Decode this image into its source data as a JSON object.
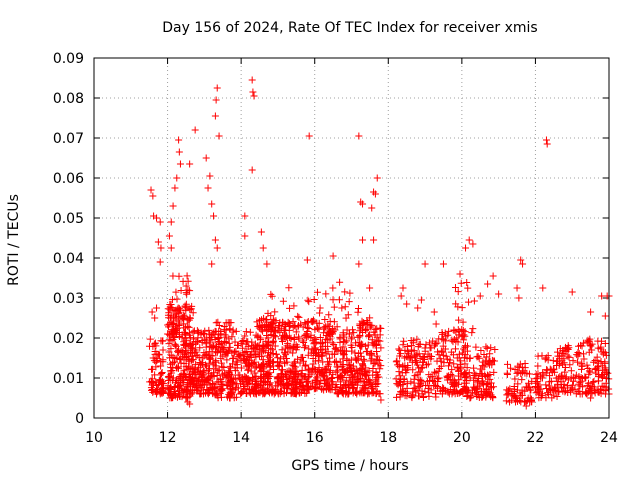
{
  "chart_data": {
    "type": "scatter",
    "title": "Day 156 of 2024, Rate Of TEC Index for receiver xmis",
    "xlabel": "GPS time / hours",
    "ylabel": "ROTI / TECUs",
    "xlim": [
      10,
      24
    ],
    "ylim": [
      0,
      0.09
    ],
    "xticks": [
      "10",
      "12",
      "14",
      "16",
      "18",
      "20",
      "22",
      "24"
    ],
    "yticks": [
      "0",
      "0.01",
      "0.02",
      "0.03",
      "0.04",
      "0.05",
      "0.06",
      "0.07",
      "0.08",
      "0.09"
    ],
    "grid": true,
    "marker": "+",
    "color": "#ff0000",
    "series": [
      {
        "name": "ROTI",
        "points": [
          [
            11.55,
            0.057
          ],
          [
            11.6,
            0.0555
          ],
          [
            11.62,
            0.0505
          ],
          [
            11.7,
            0.05
          ],
          [
            11.8,
            0.049
          ],
          [
            11.75,
            0.044
          ],
          [
            11.82,
            0.0425
          ],
          [
            11.8,
            0.039
          ],
          [
            11.58,
            0.0265
          ],
          [
            11.65,
            0.025
          ],
          [
            11.7,
            0.0275
          ],
          [
            12.3,
            0.0695
          ],
          [
            12.32,
            0.0665
          ],
          [
            12.35,
            0.0635
          ],
          [
            12.25,
            0.06
          ],
          [
            12.2,
            0.0575
          ],
          [
            12.15,
            0.053
          ],
          [
            12.1,
            0.049
          ],
          [
            12.05,
            0.0455
          ],
          [
            12.1,
            0.0425
          ],
          [
            12.6,
            0.0635
          ],
          [
            12.75,
            0.072
          ],
          [
            13.05,
            0.065
          ],
          [
            13.15,
            0.0605
          ],
          [
            13.1,
            0.0575
          ],
          [
            13.2,
            0.0535
          ],
          [
            13.25,
            0.0505
          ],
          [
            13.3,
            0.0445
          ],
          [
            13.35,
            0.0425
          ],
          [
            13.2,
            0.0385
          ],
          [
            13.35,
            0.0825
          ],
          [
            13.32,
            0.0795
          ],
          [
            13.3,
            0.0755
          ],
          [
            13.4,
            0.0705
          ],
          [
            14.3,
            0.0845
          ],
          [
            14.32,
            0.0815
          ],
          [
            14.35,
            0.0805
          ],
          [
            14.3,
            0.062
          ],
          [
            14.1,
            0.0505
          ],
          [
            14.1,
            0.0455
          ],
          [
            14.55,
            0.0465
          ],
          [
            14.6,
            0.0425
          ],
          [
            14.7,
            0.0385
          ],
          [
            15.85,
            0.0705
          ],
          [
            15.8,
            0.0395
          ],
          [
            16.5,
            0.0405
          ],
          [
            17.2,
            0.0705
          ],
          [
            17.25,
            0.054
          ],
          [
            17.3,
            0.0535
          ],
          [
            17.6,
            0.0565
          ],
          [
            17.65,
            0.056
          ],
          [
            17.7,
            0.06
          ],
          [
            17.55,
            0.0525
          ],
          [
            17.6,
            0.0445
          ],
          [
            17.3,
            0.0445
          ],
          [
            17.2,
            0.0385
          ],
          [
            19.0,
            0.0385
          ],
          [
            19.5,
            0.0385
          ],
          [
            20.1,
            0.0425
          ],
          [
            20.2,
            0.0445
          ],
          [
            20.3,
            0.0435
          ],
          [
            19.95,
            0.036
          ],
          [
            20.5,
            0.0305
          ],
          [
            20.7,
            0.0335
          ],
          [
            20.85,
            0.0355
          ],
          [
            21.0,
            0.031
          ],
          [
            21.6,
            0.0395
          ],
          [
            21.65,
            0.0385
          ],
          [
            21.5,
            0.0325
          ],
          [
            21.55,
            0.03
          ],
          [
            22.2,
            0.0325
          ],
          [
            22.3,
            0.0695
          ],
          [
            22.32,
            0.0685
          ],
          [
            23.0,
            0.0315
          ],
          [
            23.5,
            0.0265
          ],
          [
            23.8,
            0.0305
          ],
          [
            23.95,
            0.0305
          ],
          [
            23.9,
            0.0255
          ],
          [
            24.0,
            0.0305
          ],
          [
            18.35,
            0.0305
          ],
          [
            18.4,
            0.0325
          ],
          [
            18.5,
            0.0285
          ],
          [
            18.8,
            0.0275
          ],
          [
            18.9,
            0.0295
          ],
          [
            19.25,
            0.0265
          ],
          [
            19.3,
            0.0235
          ],
          [
            12.5,
            0.005
          ],
          [
            12.55,
            0.004
          ],
          [
            12.6,
            0.0035
          ],
          [
            13.7,
            0.005
          ],
          [
            14.9,
            0.006
          ],
          [
            15.5,
            0.006
          ],
          [
            16.9,
            0.006
          ],
          [
            17.8,
            0.0045
          ],
          [
            21.7,
            0.004
          ],
          [
            21.75,
            0.003
          ],
          [
            23.5,
            0.005
          ],
          [
            24.0,
            0.006
          ]
        ]
      }
    ]
  }
}
